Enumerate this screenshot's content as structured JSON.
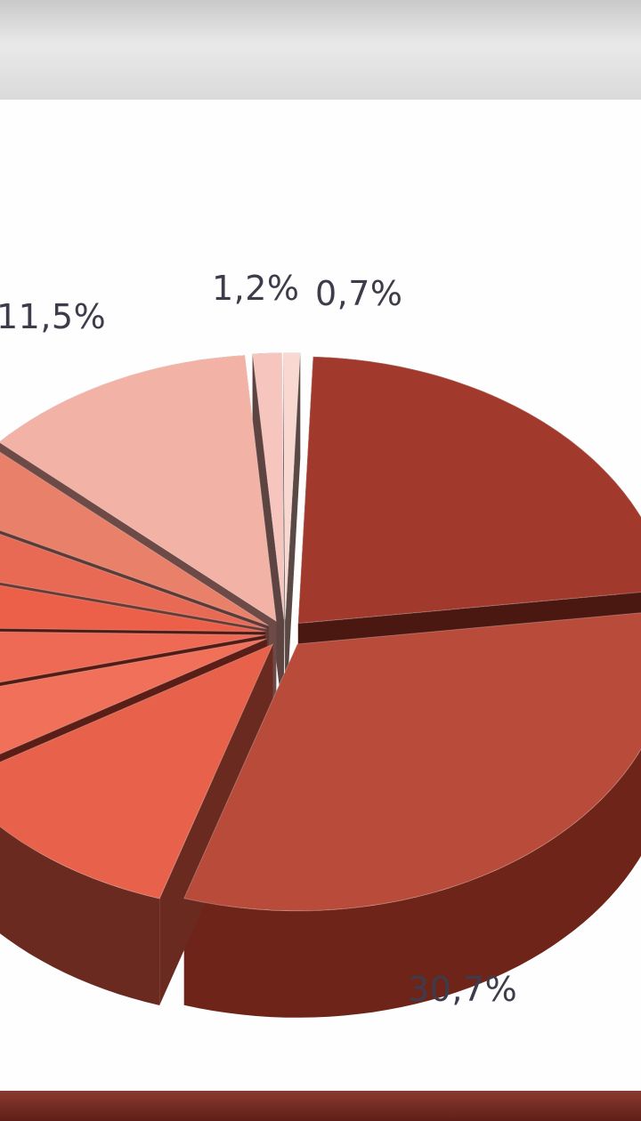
{
  "chart_data": {
    "type": "pie",
    "style": "3d-exploded",
    "slices": [
      {
        "value": 21.5,
        "color": "#a13a2c",
        "side_color": "#4a1711"
      },
      {
        "value": 30.7,
        "label": "30,7%",
        "color": "#b84b3a",
        "side_color": "#6e2418"
      },
      {
        "value": 11.0,
        "color": "#e8614a",
        "side_color": "#6a2a20"
      },
      {
        "value": 4.6,
        "color": "#f0705a",
        "side_color": "#5a1e16"
      },
      {
        "value": 4.0,
        "color": "#ef6a55",
        "side_color": "#541b14"
      },
      {
        "value": 3.4,
        "color": "#ec5f48",
        "side_color": "#4e1a13"
      },
      {
        "value": 3.4,
        "color": "#e86a55",
        "side_color": "#6b3a34"
      },
      {
        "value": 4.2,
        "color": "#e8806a",
        "side_color": "#5e3a36"
      },
      {
        "value": 11.5,
        "label": "11,5%",
        "color": "#f2b2a6",
        "side_color": "#6e4a46"
      },
      {
        "value": 1.2,
        "label": "1,2%",
        "color": "#f6c5bd",
        "side_color": "#5e4440"
      },
      {
        "value": 0.7,
        "label": "0,7%",
        "color": "#f9d8d2",
        "side_color": "#5a4844"
      }
    ]
  }
}
